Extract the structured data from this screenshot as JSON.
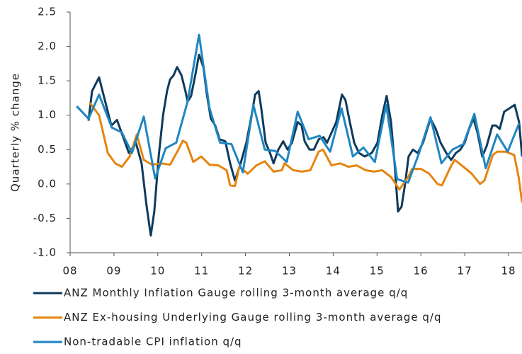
{
  "chart_data": {
    "type": "line",
    "ylabel": "Quarterly % change",
    "xlim": [
      2008,
      2018.31
    ],
    "xticks": [
      {
        "value": 2008,
        "label": "08"
      },
      {
        "value": 2009,
        "label": "09"
      },
      {
        "value": 2010,
        "label": "10"
      },
      {
        "value": 2011,
        "label": "11"
      },
      {
        "value": 2012,
        "label": "12"
      },
      {
        "value": 2013,
        "label": "13"
      },
      {
        "value": 2014,
        "label": "14"
      },
      {
        "value": 2015,
        "label": "15"
      },
      {
        "value": 2016,
        "label": "16"
      },
      {
        "value": 2017,
        "label": "17"
      },
      {
        "value": 2018,
        "label": "18"
      }
    ],
    "ylim": [
      -1,
      2.5
    ],
    "yticks": [
      {
        "value": -1,
        "label": "-1.0"
      },
      -0.5,
      {
        "value": 0,
        "label": "0.0"
      },
      0.5,
      {
        "value": 1,
        "label": "1.0"
      },
      1.5,
      {
        "value": 2,
        "label": "2.0"
      },
      2.5
    ],
    "series": [
      {
        "name": "ANZ Monthly Inflation Gauge rolling 3-month average q/q",
        "color": "#0e3a5c",
        "x": [
          2008.42,
          2008.5,
          2008.66,
          2008.94,
          2009.07,
          2009.34,
          2009.5,
          2009.63,
          2009.74,
          2009.84,
          2009.92,
          2010.02,
          2010.12,
          2010.21,
          2010.28,
          2010.36,
          2010.44,
          2010.54,
          2010.63,
          2010.68,
          2010.76,
          2010.86,
          2010.94,
          2011.04,
          2011.12,
          2011.21,
          2011.31,
          2011.41,
          2011.54,
          2011.65,
          2011.76,
          2011.89,
          2012.02,
          2012.14,
          2012.22,
          2012.3,
          2012.36,
          2012.46,
          2012.56,
          2012.64,
          2012.75,
          2012.86,
          2012.96,
          2013.06,
          2013.19,
          2013.28,
          2013.35,
          2013.46,
          2013.56,
          2013.67,
          2013.78,
          2013.86,
          2014.07,
          2014.2,
          2014.28,
          2014.38,
          2014.48,
          2014.59,
          2014.72,
          2014.88,
          2015.01,
          2015.12,
          2015.22,
          2015.32,
          2015.4,
          2015.48,
          2015.56,
          2015.64,
          2015.72,
          2015.82,
          2015.93,
          2016.05,
          2016.22,
          2016.34,
          2016.45,
          2016.58,
          2016.69,
          2016.8,
          2016.9,
          2017.0,
          2017.1,
          2017.2,
          2017.29,
          2017.4,
          2017.5,
          2017.63,
          2017.71,
          2017.8,
          2017.9,
          2018.14,
          2018.24,
          2018.31
        ],
        "values": [
          0.92,
          1.35,
          1.55,
          0.85,
          0.93,
          0.45,
          0.6,
          0.3,
          -0.3,
          -0.75,
          -0.4,
          0.4,
          1.0,
          1.35,
          1.52,
          1.58,
          1.7,
          1.58,
          1.35,
          1.2,
          1.28,
          1.6,
          1.88,
          1.7,
          1.3,
          0.95,
          0.85,
          0.65,
          0.62,
          0.3,
          0.05,
          0.3,
          0.6,
          1.0,
          1.3,
          1.35,
          1.1,
          0.6,
          0.45,
          0.3,
          0.5,
          0.62,
          0.5,
          0.6,
          0.9,
          0.85,
          0.62,
          0.5,
          0.5,
          0.65,
          0.68,
          0.6,
          0.9,
          1.3,
          1.22,
          0.9,
          0.6,
          0.45,
          0.4,
          0.45,
          0.6,
          1.0,
          1.28,
          0.9,
          0.3,
          -0.4,
          -0.33,
          0.0,
          0.4,
          0.5,
          0.45,
          0.6,
          0.95,
          0.8,
          0.6,
          0.45,
          0.35,
          0.45,
          0.5,
          0.6,
          0.8,
          0.95,
          0.75,
          0.4,
          0.55,
          0.85,
          0.85,
          0.8,
          1.05,
          1.15,
          0.9,
          0.4
        ]
      },
      {
        "name": "ANZ Ex-housing Underlying Gauge rolling 3-month average q/q",
        "color": "#e5850f",
        "x": [
          2008.45,
          2008.66,
          2008.86,
          2009.03,
          2009.18,
          2009.36,
          2009.52,
          2009.68,
          2009.87,
          2010.08,
          2010.28,
          2010.47,
          2010.57,
          2010.65,
          2010.81,
          2010.99,
          2011.18,
          2011.38,
          2011.57,
          2011.65,
          2011.76,
          2011.86,
          2012.05,
          2012.25,
          2012.44,
          2012.64,
          2012.83,
          2012.89,
          2013.09,
          2013.28,
          2013.48,
          2013.67,
          2013.77,
          2013.96,
          2014.16,
          2014.35,
          2014.54,
          2014.74,
          2014.93,
          2015.12,
          2015.32,
          2015.51,
          2015.71,
          2015.8,
          2016.0,
          2016.19,
          2016.38,
          2016.48,
          2016.68,
          2016.77,
          2016.97,
          2017.16,
          2017.35,
          2017.45,
          2017.64,
          2017.74,
          2017.94,
          2018.13,
          2018.23,
          2018.31
        ],
        "values": [
          1.18,
          1.0,
          0.45,
          0.3,
          0.25,
          0.4,
          0.72,
          0.35,
          0.28,
          0.3,
          0.28,
          0.5,
          0.63,
          0.6,
          0.32,
          0.4,
          0.28,
          0.27,
          0.2,
          -0.02,
          -0.03,
          0.25,
          0.15,
          0.27,
          0.33,
          0.18,
          0.2,
          0.3,
          0.2,
          0.18,
          0.2,
          0.47,
          0.5,
          0.27,
          0.3,
          0.25,
          0.27,
          0.2,
          0.18,
          0.2,
          0.1,
          -0.08,
          0.1,
          0.22,
          0.22,
          0.15,
          0.0,
          -0.02,
          0.25,
          0.35,
          0.25,
          0.15,
          0.0,
          0.05,
          0.42,
          0.47,
          0.47,
          0.42,
          0.1,
          -0.27
        ]
      },
      {
        "name": "Non-tradable CPI inflation q/q",
        "color": "#1f86c1",
        "x": [
          2008.15,
          2008.42,
          2008.66,
          2008.95,
          2009.18,
          2009.41,
          2009.68,
          2009.94,
          2010.18,
          2010.42,
          2010.68,
          2010.94,
          2011.18,
          2011.42,
          2011.68,
          2011.94,
          2012.18,
          2012.44,
          2012.68,
          2012.94,
          2013.19,
          2013.44,
          2013.69,
          2013.93,
          2014.19,
          2014.45,
          2014.69,
          2014.95,
          2015.21,
          2015.46,
          2015.71,
          2015.96,
          2016.22,
          2016.47,
          2016.72,
          2016.97,
          2017.22,
          2017.48,
          2017.74,
          2017.98,
          2018.24
        ],
        "values": [
          1.13,
          0.95,
          1.3,
          0.82,
          0.75,
          0.45,
          0.98,
          0.08,
          0.52,
          0.6,
          1.2,
          2.17,
          1.1,
          0.6,
          0.58,
          0.17,
          1.15,
          0.5,
          0.48,
          0.32,
          1.05,
          0.65,
          0.7,
          0.47,
          1.1,
          0.4,
          0.53,
          0.32,
          1.15,
          0.07,
          0.02,
          0.45,
          0.97,
          0.3,
          0.5,
          0.58,
          1.02,
          0.23,
          0.72,
          0.47,
          0.88
        ]
      }
    ]
  }
}
